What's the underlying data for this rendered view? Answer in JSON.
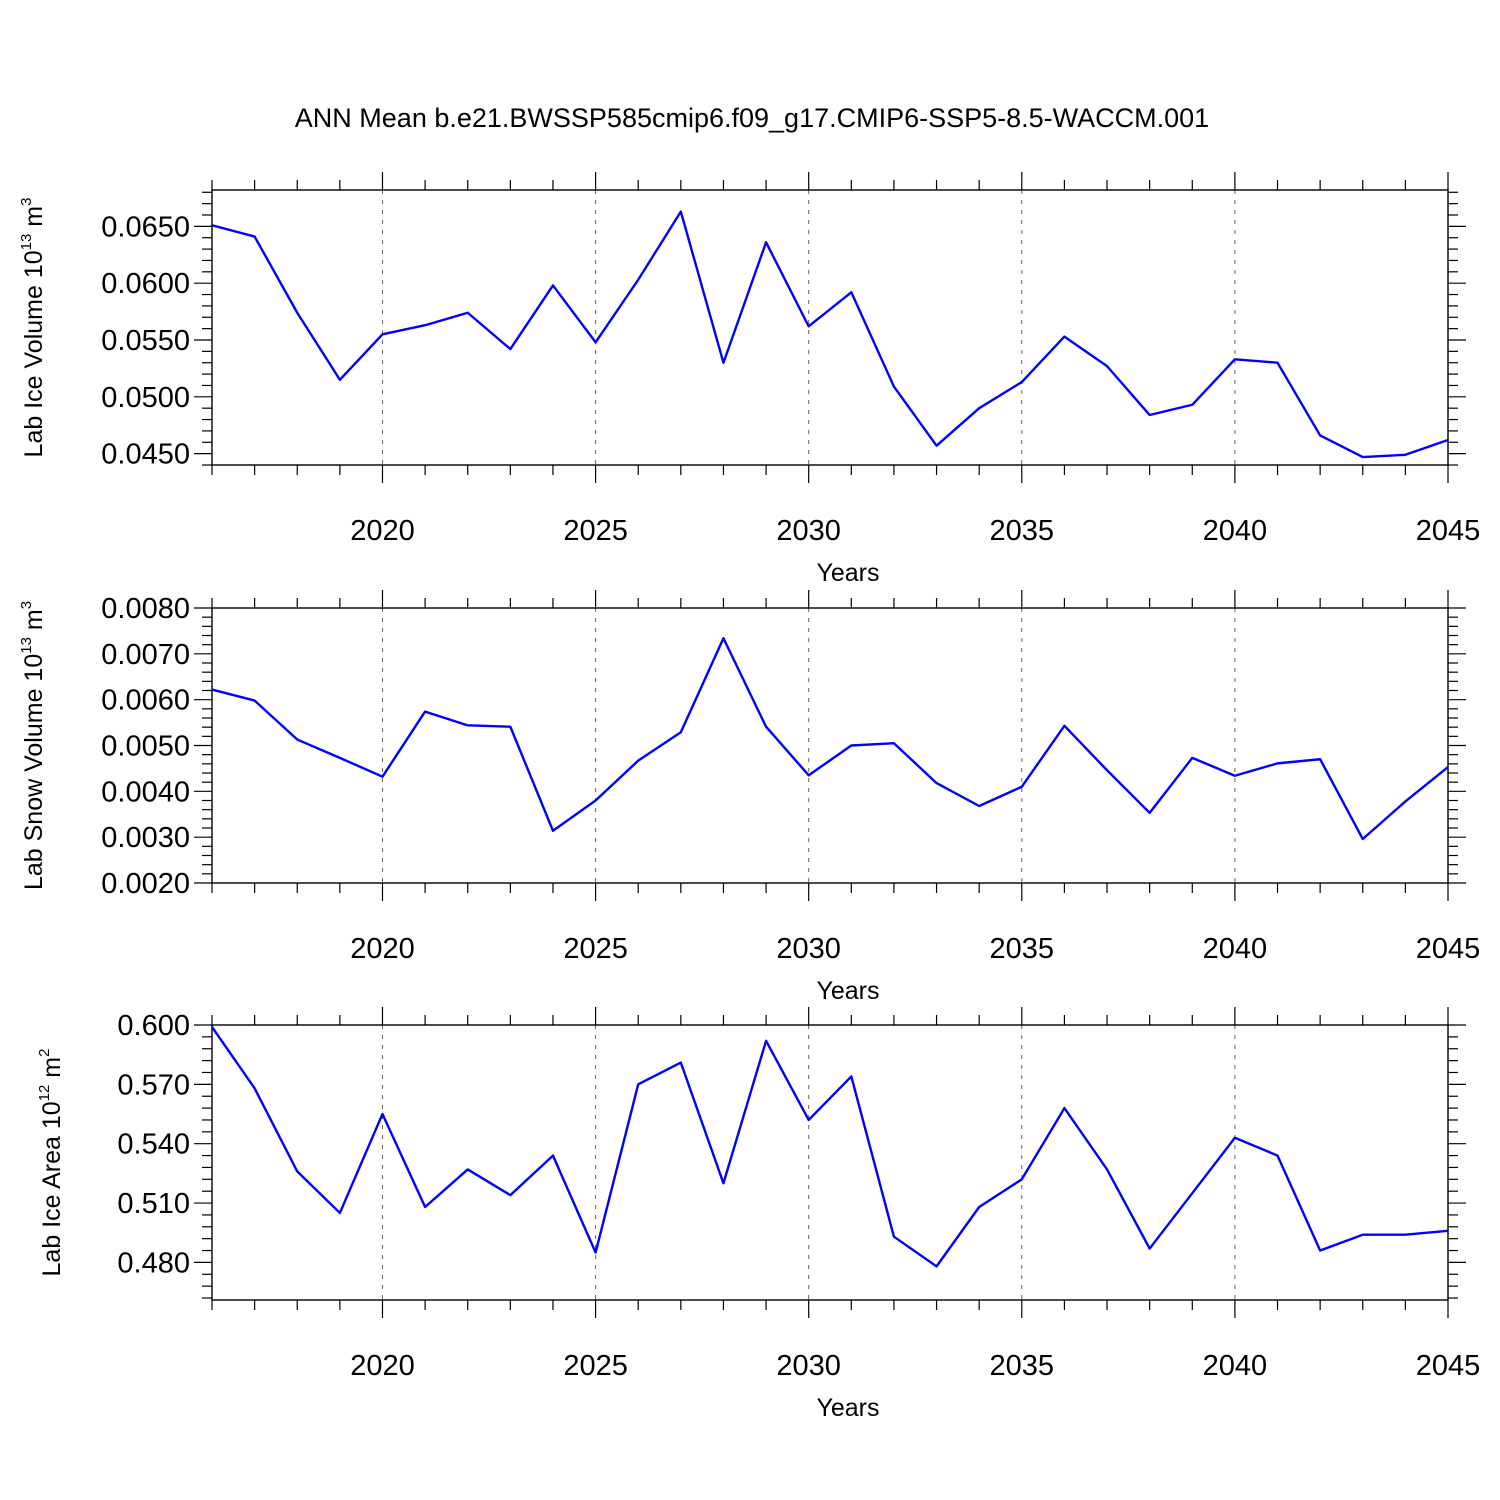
{
  "figure": {
    "title": "ANN Mean b.e21.BWSSP585cmip6.f09_g17.CMIP6-SSP5-8.5-WACCM.001",
    "line_color": "#0000ff"
  },
  "chart_data": [
    {
      "type": "line",
      "x": [
        2016,
        2017,
        2018,
        2019,
        2020,
        2021,
        2022,
        2023,
        2024,
        2025,
        2026,
        2027,
        2028,
        2029,
        2030,
        2031,
        2032,
        2033,
        2034,
        2035,
        2036,
        2037,
        2038,
        2039,
        2040,
        2041,
        2042,
        2043,
        2044,
        2045
      ],
      "series": [
        {
          "values": [
            0.0651,
            0.0641,
            0.0574,
            0.0515,
            0.0555,
            0.0563,
            0.0574,
            0.0542,
            0.0598,
            0.0548,
            0.0603,
            0.0663,
            0.053,
            0.0636,
            0.0562,
            0.0592,
            0.0509,
            0.0457,
            0.049,
            0.0513,
            0.0553,
            0.0527,
            0.0484,
            0.0493,
            0.0533,
            0.053,
            0.0466,
            0.0447,
            0.0449,
            0.0462
          ]
        }
      ],
      "ylabel": "Lab Ice Volume 10",
      "ylabel_exp": "13",
      "ylabel_unit": " m",
      "ylabel_unit_exp": "3",
      "xlabel": "Years",
      "xlim": [
        2016,
        2045
      ],
      "ylim": [
        0.044,
        0.0682
      ],
      "xticks": [
        2020,
        2025,
        2030,
        2035,
        2040,
        2045
      ],
      "xtick_labels": [
        "2020",
        "2025",
        "2030",
        "2035",
        "2040",
        "2045"
      ],
      "yticks": [
        0.045,
        0.05,
        0.055,
        0.06,
        0.065
      ],
      "ytick_labels": [
        "0.0450",
        "0.0500",
        "0.0550",
        "0.0600",
        "0.0650"
      ],
      "grid": "vertical dashed at labeled years"
    },
    {
      "type": "line",
      "x": [
        2016,
        2017,
        2018,
        2019,
        2020,
        2021,
        2022,
        2023,
        2024,
        2025,
        2026,
        2027,
        2028,
        2029,
        2030,
        2031,
        2032,
        2033,
        2034,
        2035,
        2036,
        2037,
        2038,
        2039,
        2040,
        2041,
        2042,
        2043,
        2044,
        2045
      ],
      "series": [
        {
          "values": [
            0.00622,
            0.00598,
            0.00513,
            0.00473,
            0.00432,
            0.00574,
            0.00544,
            0.00541,
            0.00314,
            0.0038,
            0.00467,
            0.00529,
            0.00734,
            0.00541,
            0.00435,
            0.005,
            0.00505,
            0.00418,
            0.00368,
            0.0041,
            0.00543,
            0.00446,
            0.00353,
            0.00473,
            0.00434,
            0.00461,
            0.0047,
            0.00296,
            0.00378,
            0.00453
          ]
        }
      ],
      "ylabel": "Lab Snow Volume 10",
      "ylabel_exp": "13",
      "ylabel_unit": " m",
      "ylabel_unit_exp": "3",
      "xlabel": "Years",
      "xlim": [
        2016,
        2045
      ],
      "ylim": [
        0.002,
        0.008
      ],
      "xticks": [
        2020,
        2025,
        2030,
        2035,
        2040,
        2045
      ],
      "xtick_labels": [
        "2020",
        "2025",
        "2030",
        "2035",
        "2040",
        "2045"
      ],
      "yticks": [
        0.002,
        0.003,
        0.004,
        0.005,
        0.006,
        0.007,
        0.008
      ],
      "ytick_labels": [
        "0.0020",
        "0.0030",
        "0.0040",
        "0.0050",
        "0.0060",
        "0.0070",
        "0.0080"
      ],
      "grid": "vertical dashed at labeled years"
    },
    {
      "type": "line",
      "x": [
        2016,
        2017,
        2018,
        2019,
        2020,
        2021,
        2022,
        2023,
        2024,
        2025,
        2026,
        2027,
        2028,
        2029,
        2030,
        2031,
        2032,
        2033,
        2034,
        2035,
        2036,
        2037,
        2038,
        2039,
        2040,
        2041,
        2042,
        2043,
        2044,
        2045
      ],
      "series": [
        {
          "values": [
            0.599,
            0.568,
            0.526,
            0.505,
            0.555,
            0.508,
            0.527,
            0.514,
            0.534,
            0.485,
            0.57,
            0.581,
            0.52,
            0.592,
            0.552,
            0.574,
            0.493,
            0.478,
            0.508,
            0.522,
            0.558,
            0.527,
            0.487,
            0.515,
            0.543,
            0.534,
            0.486,
            0.494,
            0.494,
            0.496
          ]
        }
      ],
      "ylabel": "Lab Ice Area 10",
      "ylabel_exp": "12",
      "ylabel_unit": " m",
      "ylabel_unit_exp": "2",
      "xlabel": "Years",
      "xlim": [
        2016,
        2045
      ],
      "ylim": [
        0.461,
        0.6
      ],
      "xticks": [
        2020,
        2025,
        2030,
        2035,
        2040,
        2045
      ],
      "xtick_labels": [
        "2020",
        "2025",
        "2030",
        "2035",
        "2040",
        "2045"
      ],
      "yticks": [
        0.48,
        0.51,
        0.54,
        0.57,
        0.6
      ],
      "ytick_labels": [
        "0.480",
        "0.510",
        "0.540",
        "0.570",
        "0.600"
      ],
      "grid": "vertical dashed at labeled years"
    }
  ]
}
